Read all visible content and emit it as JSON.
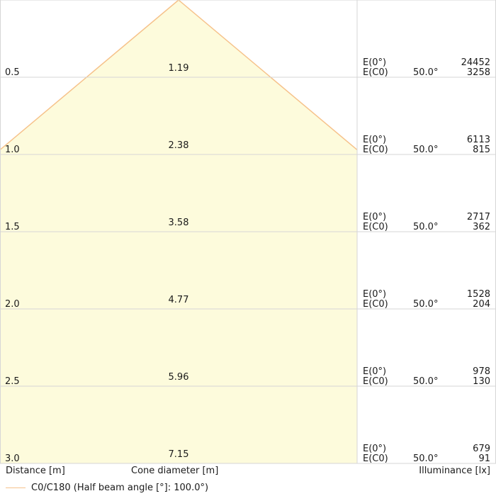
{
  "chart_data": {
    "type": "table",
    "xlabel": "Distance [m]",
    "cone_label": "Cone diameter [m]",
    "illuminance_label": "Illuminance [lx]",
    "rows": [
      {
        "distance": "0.5",
        "diameter": "1.19",
        "angle": "50.0°",
        "e0_label": "E(0°)",
        "ec0_label": "E(C0)",
        "e0": "24452",
        "ec0": "3258"
      },
      {
        "distance": "1.0",
        "diameter": "2.38",
        "angle": "50.0°",
        "e0_label": "E(0°)",
        "ec0_label": "E(C0)",
        "e0": "6113",
        "ec0": "815"
      },
      {
        "distance": "1.5",
        "diameter": "3.58",
        "angle": "50.0°",
        "e0_label": "E(0°)",
        "ec0_label": "E(C0)",
        "e0": "2717",
        "ec0": "362"
      },
      {
        "distance": "2.0",
        "diameter": "4.77",
        "angle": "50.0°",
        "e0_label": "E(0°)",
        "ec0_label": "E(C0)",
        "e0": "1528",
        "ec0": "204"
      },
      {
        "distance": "2.5",
        "diameter": "5.96",
        "angle": "50.0°",
        "e0_label": "E(0°)",
        "ec0_label": "E(C0)",
        "e0": "978",
        "ec0": "130"
      },
      {
        "distance": "3.0",
        "diameter": "7.15",
        "angle": "50.0°",
        "e0_label": "E(0°)",
        "ec0_label": "E(C0)",
        "e0": "679",
        "ec0": "91"
      }
    ],
    "legend": "C0/C180 (Half beam angle [°]: 100.0°)",
    "half_beam_angle_deg": 100.0,
    "colors": {
      "cone_fill": "#fdfbdc",
      "cone_edge": "#f6c28b",
      "grid": "#d6d6d6"
    }
  }
}
